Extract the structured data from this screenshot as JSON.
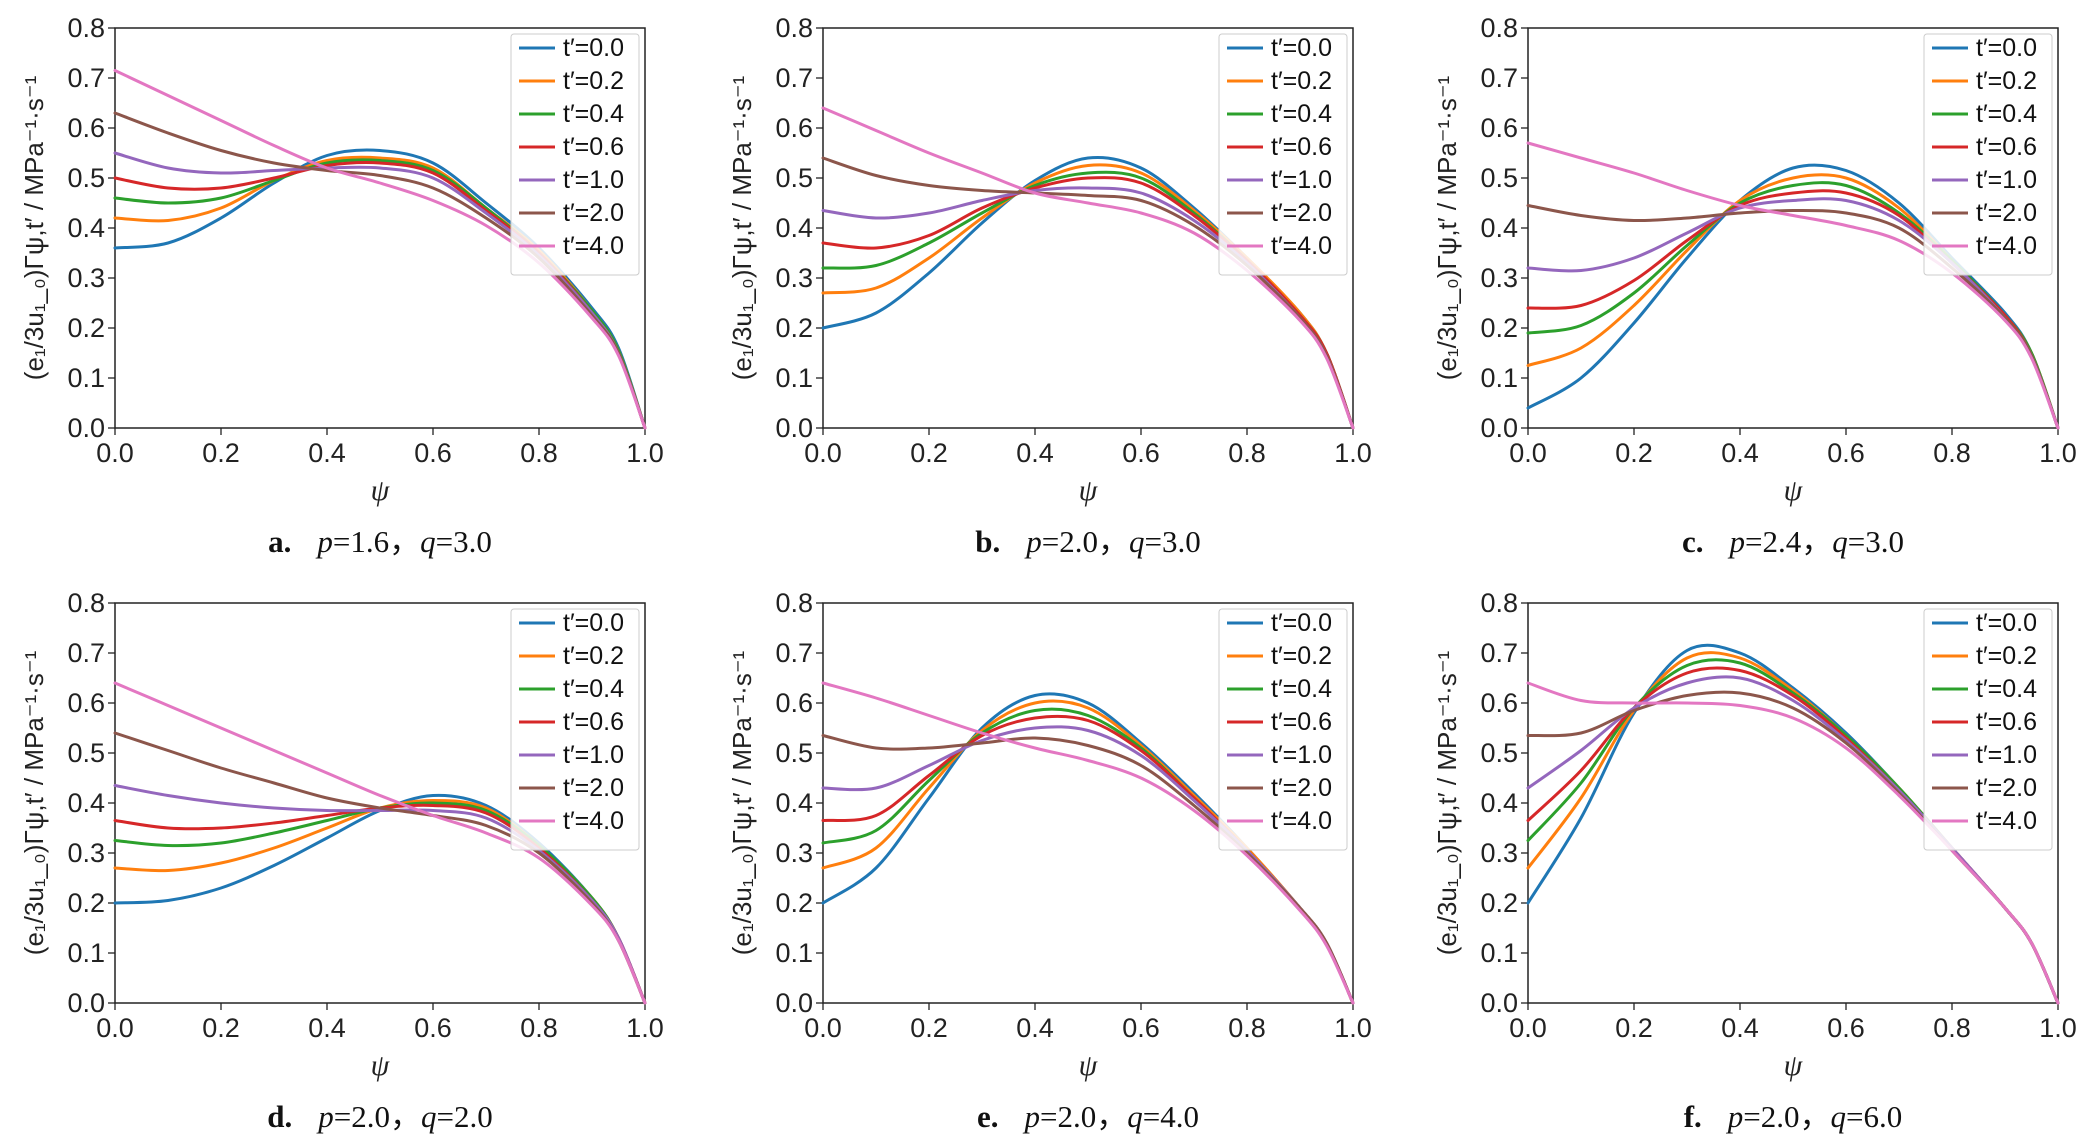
{
  "chart_data": [
    {
      "type": "line",
      "panel_letter": "a.",
      "caption_params": {
        "p": "1.6",
        "q": "3.0"
      },
      "xlabel": "ψ",
      "ylabel": "(e₁/3u₁_₀)Γψ,t′ / MPa⁻¹·s⁻¹",
      "xlim": [
        0.0,
        1.0
      ],
      "ylim": [
        0.0,
        0.8
      ],
      "xticks": [
        "0.0",
        "0.2",
        "0.4",
        "0.6",
        "0.8",
        "1.0"
      ],
      "yticks": [
        "0.0",
        "0.1",
        "0.2",
        "0.3",
        "0.4",
        "0.5",
        "0.6",
        "0.7",
        "0.8"
      ],
      "legend": {
        "position": "top-right"
      },
      "x": [
        0.0,
        0.1,
        0.2,
        0.3,
        0.4,
        0.5,
        0.6,
        0.7,
        0.8,
        0.9,
        0.95,
        1.0
      ],
      "series": [
        {
          "name": "t′=0.0",
          "color": "#1f77b4",
          "values": [
            0.36,
            0.37,
            0.42,
            0.49,
            0.545,
            0.555,
            0.53,
            0.45,
            0.36,
            0.24,
            0.16,
            0.0
          ]
        },
        {
          "name": "t′=0.2",
          "color": "#ff7f0e",
          "values": [
            0.42,
            0.415,
            0.44,
            0.495,
            0.535,
            0.54,
            0.52,
            0.44,
            0.355,
            0.235,
            0.155,
            0.0
          ]
        },
        {
          "name": "t′=0.4",
          "color": "#2ca02c",
          "values": [
            0.46,
            0.45,
            0.46,
            0.495,
            0.53,
            0.535,
            0.515,
            0.44,
            0.35,
            0.235,
            0.155,
            0.0
          ]
        },
        {
          "name": "t′=0.6",
          "color": "#d62728",
          "values": [
            0.5,
            0.48,
            0.48,
            0.5,
            0.525,
            0.53,
            0.51,
            0.435,
            0.35,
            0.23,
            0.15,
            0.0
          ]
        },
        {
          "name": "t′=1.0",
          "color": "#9467bd",
          "values": [
            0.55,
            0.52,
            0.51,
            0.515,
            0.52,
            0.52,
            0.5,
            0.43,
            0.345,
            0.23,
            0.15,
            0.0
          ]
        },
        {
          "name": "t′=2.0",
          "color": "#8c564b",
          "values": [
            0.63,
            0.59,
            0.555,
            0.53,
            0.515,
            0.505,
            0.48,
            0.42,
            0.34,
            0.225,
            0.15,
            0.0
          ]
        },
        {
          "name": "t′=4.0",
          "color": "#e377c2",
          "values": [
            0.715,
            0.665,
            0.615,
            0.565,
            0.52,
            0.49,
            0.455,
            0.405,
            0.33,
            0.22,
            0.145,
            0.0
          ]
        }
      ]
    },
    {
      "type": "line",
      "panel_letter": "b.",
      "caption_params": {
        "p": "2.0",
        "q": "3.0"
      },
      "xlabel": "ψ",
      "ylabel": "(e₁/3u₁_₀)Γψ,t′ / MPa⁻¹·s⁻¹",
      "xlim": [
        0.0,
        1.0
      ],
      "ylim": [
        0.0,
        0.8
      ],
      "xticks": [
        "0.0",
        "0.2",
        "0.4",
        "0.6",
        "0.8",
        "1.0"
      ],
      "yticks": [
        "0.0",
        "0.1",
        "0.2",
        "0.3",
        "0.4",
        "0.5",
        "0.6",
        "0.7",
        "0.8"
      ],
      "legend": {
        "position": "top-right"
      },
      "x": [
        0.0,
        0.1,
        0.2,
        0.3,
        0.4,
        0.5,
        0.6,
        0.7,
        0.8,
        0.9,
        0.95,
        1.0
      ],
      "series": [
        {
          "name": "t′=0.0",
          "color": "#1f77b4",
          "values": [
            0.2,
            0.23,
            0.31,
            0.41,
            0.495,
            0.54,
            0.52,
            0.44,
            0.34,
            0.23,
            0.15,
            0.0
          ]
        },
        {
          "name": "t′=0.2",
          "color": "#ff7f0e",
          "values": [
            0.27,
            0.28,
            0.34,
            0.42,
            0.49,
            0.525,
            0.51,
            0.435,
            0.34,
            0.23,
            0.15,
            0.0
          ]
        },
        {
          "name": "t′=0.4",
          "color": "#2ca02c",
          "values": [
            0.32,
            0.325,
            0.37,
            0.43,
            0.485,
            0.51,
            0.5,
            0.43,
            0.335,
            0.225,
            0.15,
            0.0
          ]
        },
        {
          "name": "t′=0.6",
          "color": "#d62728",
          "values": [
            0.37,
            0.36,
            0.385,
            0.44,
            0.48,
            0.5,
            0.49,
            0.425,
            0.335,
            0.225,
            0.15,
            0.0
          ]
        },
        {
          "name": "t′=1.0",
          "color": "#9467bd",
          "values": [
            0.435,
            0.42,
            0.43,
            0.455,
            0.475,
            0.48,
            0.47,
            0.415,
            0.33,
            0.22,
            0.145,
            0.0
          ]
        },
        {
          "name": "t′=2.0",
          "color": "#8c564b",
          "values": [
            0.54,
            0.505,
            0.485,
            0.475,
            0.47,
            0.465,
            0.455,
            0.405,
            0.325,
            0.22,
            0.145,
            0.0
          ]
        },
        {
          "name": "t′=4.0",
          "color": "#e377c2",
          "values": [
            0.64,
            0.595,
            0.55,
            0.51,
            0.47,
            0.45,
            0.43,
            0.39,
            0.315,
            0.215,
            0.14,
            0.0
          ]
        }
      ]
    },
    {
      "type": "line",
      "panel_letter": "c.",
      "caption_params": {
        "p": "2.4",
        "q": "3.0"
      },
      "xlabel": "ψ",
      "ylabel": "(e₁/3u₁_₀)Γψ,t′ / MPa⁻¹·s⁻¹",
      "xlim": [
        0.0,
        1.0
      ],
      "ylim": [
        0.0,
        0.8
      ],
      "xticks": [
        "0.0",
        "0.2",
        "0.4",
        "0.6",
        "0.8",
        "1.0"
      ],
      "yticks": [
        "0.0",
        "0.1",
        "0.2",
        "0.3",
        "0.4",
        "0.5",
        "0.6",
        "0.7",
        "0.8"
      ],
      "legend": {
        "position": "top-right"
      },
      "x": [
        0.0,
        0.1,
        0.2,
        0.3,
        0.4,
        0.5,
        0.6,
        0.7,
        0.8,
        0.9,
        0.95,
        1.0
      ],
      "series": [
        {
          "name": "t′=0.0",
          "color": "#1f77b4",
          "values": [
            0.04,
            0.1,
            0.21,
            0.34,
            0.455,
            0.52,
            0.515,
            0.45,
            0.34,
            0.23,
            0.15,
            0.0
          ]
        },
        {
          "name": "t′=0.2",
          "color": "#ff7f0e",
          "values": [
            0.125,
            0.16,
            0.245,
            0.355,
            0.455,
            0.5,
            0.5,
            0.44,
            0.335,
            0.225,
            0.15,
            0.0
          ]
        },
        {
          "name": "t′=0.4",
          "color": "#2ca02c",
          "values": [
            0.19,
            0.205,
            0.27,
            0.365,
            0.45,
            0.485,
            0.485,
            0.43,
            0.335,
            0.225,
            0.15,
            0.0
          ]
        },
        {
          "name": "t′=0.6",
          "color": "#d62728",
          "values": [
            0.24,
            0.245,
            0.295,
            0.375,
            0.445,
            0.47,
            0.47,
            0.425,
            0.33,
            0.225,
            0.145,
            0.0
          ]
        },
        {
          "name": "t′=1.0",
          "color": "#9467bd",
          "values": [
            0.32,
            0.315,
            0.34,
            0.39,
            0.44,
            0.455,
            0.455,
            0.415,
            0.33,
            0.22,
            0.145,
            0.0
          ]
        },
        {
          "name": "t′=2.0",
          "color": "#8c564b",
          "values": [
            0.445,
            0.425,
            0.415,
            0.42,
            0.43,
            0.435,
            0.43,
            0.4,
            0.32,
            0.22,
            0.145,
            0.0
          ]
        },
        {
          "name": "t′=4.0",
          "color": "#e377c2",
          "values": [
            0.57,
            0.54,
            0.51,
            0.475,
            0.445,
            0.425,
            0.405,
            0.375,
            0.31,
            0.215,
            0.14,
            0.0
          ]
        }
      ]
    },
    {
      "type": "line",
      "panel_letter": "d.",
      "caption_params": {
        "p": "2.0",
        "q": "2.0"
      },
      "xlabel": "ψ",
      "ylabel": "(e₁/3u₁_₀)Γψ,t′ / MPa⁻¹·s⁻¹",
      "xlim": [
        0.0,
        1.0
      ],
      "ylim": [
        0.0,
        0.8
      ],
      "xticks": [
        "0.0",
        "0.2",
        "0.4",
        "0.6",
        "0.8",
        "1.0"
      ],
      "yticks": [
        "0.0",
        "0.1",
        "0.2",
        "0.3",
        "0.4",
        "0.5",
        "0.6",
        "0.7",
        "0.8"
      ],
      "legend": {
        "position": "top-right"
      },
      "x": [
        0.0,
        0.1,
        0.2,
        0.3,
        0.4,
        0.5,
        0.6,
        0.7,
        0.8,
        0.9,
        0.95,
        1.0
      ],
      "series": [
        {
          "name": "t′=0.0",
          "color": "#1f77b4",
          "values": [
            0.2,
            0.205,
            0.23,
            0.275,
            0.33,
            0.385,
            0.415,
            0.395,
            0.32,
            0.21,
            0.13,
            0.0
          ]
        },
        {
          "name": "t′=0.2",
          "color": "#ff7f0e",
          "values": [
            0.27,
            0.265,
            0.28,
            0.31,
            0.35,
            0.39,
            0.405,
            0.39,
            0.315,
            0.21,
            0.13,
            0.0
          ]
        },
        {
          "name": "t′=0.4",
          "color": "#2ca02c",
          "values": [
            0.325,
            0.315,
            0.32,
            0.34,
            0.365,
            0.39,
            0.4,
            0.385,
            0.315,
            0.21,
            0.13,
            0.0
          ]
        },
        {
          "name": "t′=0.6",
          "color": "#d62728",
          "values": [
            0.365,
            0.35,
            0.35,
            0.36,
            0.375,
            0.39,
            0.395,
            0.38,
            0.31,
            0.205,
            0.13,
            0.0
          ]
        },
        {
          "name": "t′=1.0",
          "color": "#9467bd",
          "values": [
            0.435,
            0.415,
            0.4,
            0.39,
            0.385,
            0.385,
            0.385,
            0.37,
            0.305,
            0.205,
            0.13,
            0.0
          ]
        },
        {
          "name": "t′=2.0",
          "color": "#8c564b",
          "values": [
            0.54,
            0.505,
            0.47,
            0.44,
            0.41,
            0.39,
            0.375,
            0.355,
            0.3,
            0.2,
            0.125,
            0.0
          ]
        },
        {
          "name": "t′=4.0",
          "color": "#e377c2",
          "values": [
            0.64,
            0.595,
            0.55,
            0.505,
            0.46,
            0.415,
            0.375,
            0.34,
            0.29,
            0.195,
            0.125,
            0.0
          ]
        }
      ]
    },
    {
      "type": "line",
      "panel_letter": "e.",
      "caption_params": {
        "p": "2.0",
        "q": "4.0"
      },
      "xlabel": "ψ",
      "ylabel": "(e₁/3u₁_₀)Γψ,t′ / MPa⁻¹·s⁻¹",
      "xlim": [
        0.0,
        1.0
      ],
      "ylim": [
        0.0,
        0.8
      ],
      "xticks": [
        "0.0",
        "0.2",
        "0.4",
        "0.6",
        "0.8",
        "1.0"
      ],
      "yticks": [
        "0.0",
        "0.1",
        "0.2",
        "0.3",
        "0.4",
        "0.5",
        "0.6",
        "0.7",
        "0.8"
      ],
      "legend": {
        "position": "top-right"
      },
      "x": [
        0.0,
        0.1,
        0.2,
        0.3,
        0.4,
        0.5,
        0.6,
        0.7,
        0.8,
        0.9,
        0.95,
        1.0
      ],
      "series": [
        {
          "name": "t′=0.0",
          "color": "#1f77b4",
          "values": [
            0.2,
            0.27,
            0.41,
            0.55,
            0.615,
            0.6,
            0.52,
            0.42,
            0.31,
            0.19,
            0.12,
            0.0
          ]
        },
        {
          "name": "t′=0.2",
          "color": "#ff7f0e",
          "values": [
            0.27,
            0.31,
            0.43,
            0.545,
            0.6,
            0.59,
            0.515,
            0.415,
            0.31,
            0.19,
            0.12,
            0.0
          ]
        },
        {
          "name": "t′=0.4",
          "color": "#2ca02c",
          "values": [
            0.32,
            0.345,
            0.445,
            0.54,
            0.585,
            0.575,
            0.51,
            0.41,
            0.305,
            0.19,
            0.12,
            0.0
          ]
        },
        {
          "name": "t′=0.6",
          "color": "#d62728",
          "values": [
            0.365,
            0.375,
            0.455,
            0.535,
            0.57,
            0.565,
            0.505,
            0.41,
            0.305,
            0.19,
            0.12,
            0.0
          ]
        },
        {
          "name": "t′=1.0",
          "color": "#9467bd",
          "values": [
            0.43,
            0.43,
            0.475,
            0.525,
            0.55,
            0.545,
            0.495,
            0.405,
            0.305,
            0.19,
            0.12,
            0.0
          ]
        },
        {
          "name": "t′=2.0",
          "color": "#8c564b",
          "values": [
            0.535,
            0.51,
            0.51,
            0.52,
            0.53,
            0.515,
            0.475,
            0.395,
            0.3,
            0.19,
            0.12,
            0.0
          ]
        },
        {
          "name": "t′=4.0",
          "color": "#e377c2",
          "values": [
            0.64,
            0.61,
            0.575,
            0.54,
            0.51,
            0.485,
            0.45,
            0.385,
            0.295,
            0.185,
            0.115,
            0.0
          ]
        }
      ]
    },
    {
      "type": "line",
      "panel_letter": "f.",
      "caption_params": {
        "p": "2.0",
        "q": "6.0"
      },
      "xlabel": "ψ",
      "ylabel": "(e₁/3u₁_₀)Γψ,t′ / MPa⁻¹·s⁻¹",
      "xlim": [
        0.0,
        1.0
      ],
      "ylim": [
        0.0,
        0.8
      ],
      "xticks": [
        "0.0",
        "0.2",
        "0.4",
        "0.6",
        "0.8",
        "1.0"
      ],
      "yticks": [
        "0.0",
        "0.1",
        "0.2",
        "0.3",
        "0.4",
        "0.5",
        "0.6",
        "0.7",
        "0.8"
      ],
      "legend": {
        "position": "top-right"
      },
      "x": [
        0.0,
        0.1,
        0.2,
        0.3,
        0.4,
        0.5,
        0.6,
        0.7,
        0.8,
        0.9,
        0.95,
        1.0
      ],
      "series": [
        {
          "name": "t′=0.0",
          "color": "#1f77b4",
          "values": [
            0.2,
            0.37,
            0.58,
            0.705,
            0.7,
            0.63,
            0.54,
            0.43,
            0.31,
            0.19,
            0.12,
            0.0
          ]
        },
        {
          "name": "t′=0.2",
          "color": "#ff7f0e",
          "values": [
            0.27,
            0.41,
            0.585,
            0.69,
            0.69,
            0.625,
            0.535,
            0.43,
            0.31,
            0.19,
            0.12,
            0.0
          ]
        },
        {
          "name": "t′=0.4",
          "color": "#2ca02c",
          "values": [
            0.325,
            0.44,
            0.59,
            0.675,
            0.68,
            0.62,
            0.535,
            0.43,
            0.31,
            0.19,
            0.12,
            0.0
          ]
        },
        {
          "name": "t′=0.6",
          "color": "#d62728",
          "values": [
            0.365,
            0.465,
            0.59,
            0.66,
            0.665,
            0.615,
            0.53,
            0.425,
            0.31,
            0.19,
            0.12,
            0.0
          ]
        },
        {
          "name": "t′=1.0",
          "color": "#9467bd",
          "values": [
            0.43,
            0.505,
            0.59,
            0.64,
            0.65,
            0.605,
            0.525,
            0.425,
            0.31,
            0.19,
            0.12,
            0.0
          ]
        },
        {
          "name": "t′=2.0",
          "color": "#8c564b",
          "values": [
            0.535,
            0.54,
            0.585,
            0.615,
            0.62,
            0.59,
            0.52,
            0.42,
            0.305,
            0.19,
            0.12,
            0.0
          ]
        },
        {
          "name": "t′=4.0",
          "color": "#e377c2",
          "values": [
            0.64,
            0.605,
            0.6,
            0.6,
            0.595,
            0.57,
            0.51,
            0.415,
            0.305,
            0.19,
            0.12,
            0.0
          ]
        }
      ]
    }
  ]
}
